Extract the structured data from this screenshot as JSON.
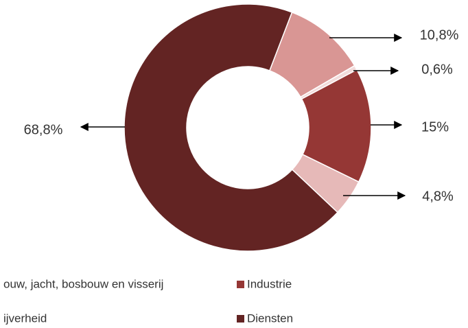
{
  "chart_data": {
    "type": "donut",
    "categories": [
      "ouw, jacht, bosbouw en visserij",
      null,
      "Industrie",
      "ijverheid",
      "Diensten"
    ],
    "values": [
      10.8,
      0.6,
      15,
      4.8,
      68.8
    ],
    "value_labels": [
      "10,8%",
      "0,6%",
      "15%",
      "4,8%",
      "68,8%"
    ],
    "colors": [
      "#d99694",
      "#f2dcdb",
      "#953735",
      "#e6b9b8",
      "#632423"
    ],
    "legend": "bottom"
  }
}
